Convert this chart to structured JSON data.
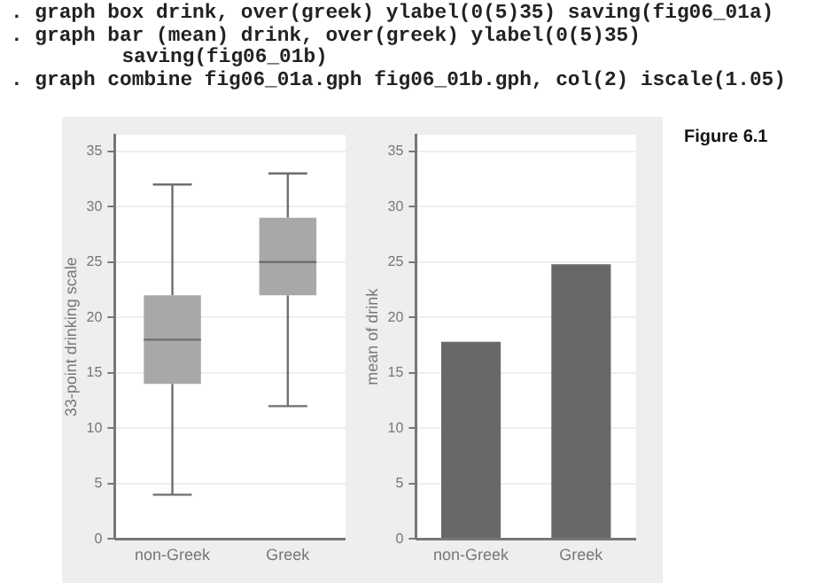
{
  "chart_data": [
    {
      "type": "box",
      "categories": [
        "non-Greek",
        "Greek"
      ],
      "ylabel": "33-point drinking scale",
      "boxes": [
        {
          "low": 4,
          "q1": 14,
          "median": 18,
          "q3": 22,
          "high": 32
        },
        {
          "low": 12,
          "q1": 22,
          "median": 25,
          "q3": 29,
          "high": 33
        }
      ],
      "color": "#a8a8a8",
      "ylim": [
        0,
        36.5
      ],
      "yticks": [
        0,
        5,
        10,
        15,
        20,
        25,
        30,
        35
      ],
      "grid": "y",
      "annotations": [
        ". graph box drink, over(greek) ylabel(0(5)35) saving(fig06_01a)",
        ". graph bar (mean) drink, over(greek) ylabel(0(5)35) saving(fig06_01b)",
        ". graph combine fig06_01a.gph fig06_01b.gph, col(2) iscale(1.05)"
      ]
    },
    {
      "type": "bar",
      "categories": [
        "non-Greek",
        "Greek"
      ],
      "ylabel": "mean of drink",
      "values": [
        17.8,
        24.8
      ],
      "color": "#686868",
      "ylim": [
        0,
        36.5
      ],
      "yticks": [
        0,
        5,
        10,
        15,
        20,
        25,
        30,
        35
      ],
      "grid": "y",
      "annotations": [
        "Figure 6.1"
      ]
    }
  ]
}
